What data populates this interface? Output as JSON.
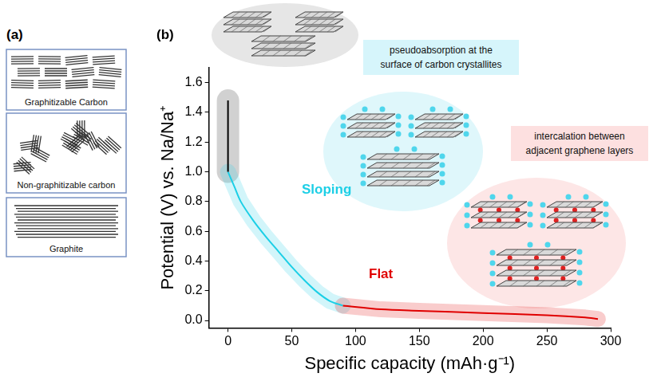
{
  "panel_a": {
    "label": "(a)",
    "boxes": [
      "Graphitizable Carbon",
      "Non-graphitizable carbon",
      "Graphite"
    ]
  },
  "chart_data": {
    "label": "(b)",
    "type": "line",
    "x_label": "Specific capacity (mAh·g⁻¹)",
    "y_label": "Potential (V) vs. Na/Na⁺",
    "xlim": [
      -15,
      300
    ],
    "xticks": [
      0,
      50,
      100,
      150,
      200,
      250,
      300
    ],
    "ylim": [
      -0.05,
      1.7
    ],
    "yticks": [
      {
        "value": 0,
        "label": "0.0"
      },
      0.2,
      0.4,
      0.6,
      0.8,
      {
        "value": 1,
        "label": "1.0"
      },
      1.2,
      1.4,
      1.6
    ],
    "grid": false,
    "marker": "none",
    "series": [
      {
        "color": "#000000",
        "x": [
          0,
          0
        ],
        "values": [
          1.48,
          1.0
        ]
      },
      {
        "name": "Sloping",
        "color": "#1ccfe6",
        "x": [
          0,
          5,
          10,
          20,
          30,
          40,
          50,
          60,
          70,
          80,
          90
        ],
        "values": [
          1.0,
          0.9,
          0.8,
          0.67,
          0.56,
          0.46,
          0.36,
          0.27,
          0.19,
          0.13,
          0.1
        ]
      },
      {
        "name": "Flat",
        "color": "#e00000",
        "x": [
          90,
          120,
          150,
          200,
          250,
          280,
          290
        ],
        "values": [
          0.1,
          0.075,
          0.065,
          0.05,
          0.035,
          0.02,
          0.01
        ]
      }
    ],
    "annotations": [
      {
        "lines": [
          "pseudoabsorption  at the",
          "surface of carbon crystallites"
        ],
        "color": "#d6f5fb"
      },
      {
        "lines": [
          "intercalation between",
          "adjacent graphene layers"
        ],
        "color": "#fde0e0"
      }
    ]
  }
}
